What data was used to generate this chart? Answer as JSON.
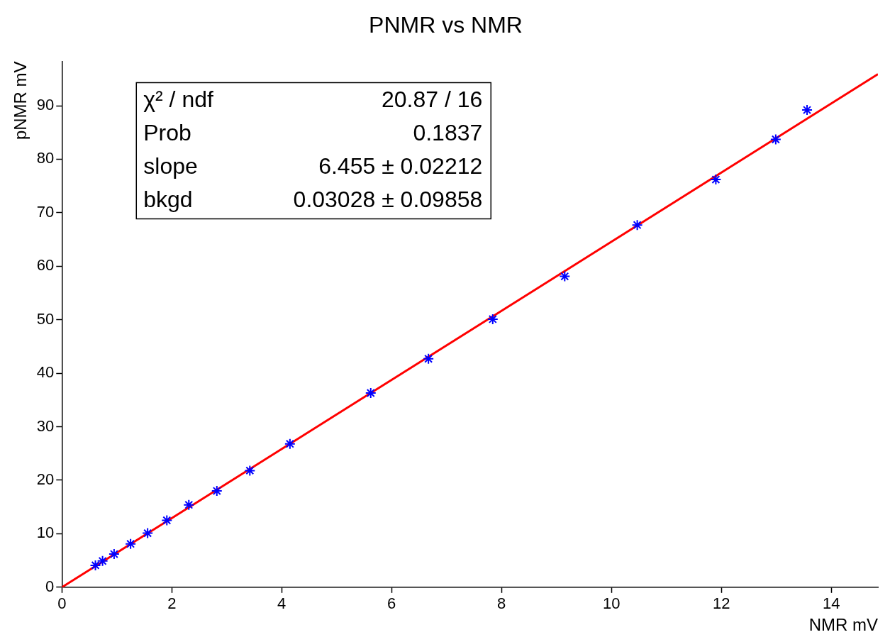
{
  "chart_data": {
    "type": "scatter",
    "title": "PNMR vs NMR",
    "xlabel": "NMR mV",
    "ylabel": "pNMR mV",
    "xlim": [
      0,
      14.85
    ],
    "ylim": [
      0,
      98.3
    ],
    "xticks": [
      0,
      2,
      4,
      6,
      8,
      10,
      12,
      14
    ],
    "yticks": [
      0,
      10,
      20,
      30,
      40,
      50,
      60,
      70,
      80,
      90
    ],
    "grid": false,
    "legend": false,
    "annotations": [
      "χ² / ndf",
      "20.87 / 16",
      "Prob",
      "0.1837",
      "slope",
      "6.455 ± 0.02212",
      "bkgd",
      "0.03028 ± 0.09858"
    ],
    "series": [
      {
        "marker": "cross",
        "color": "#0000ff",
        "x": [
          0.61,
          0.74,
          0.95,
          1.25,
          1.56,
          1.91,
          2.31,
          2.82,
          3.42,
          4.15,
          5.62,
          6.67,
          7.84,
          9.15,
          10.47,
          11.9,
          12.99,
          13.56
        ],
        "values": [
          4.1,
          4.9,
          6.2,
          8.1,
          10.1,
          12.5,
          15.4,
          18.0,
          21.8,
          26.8,
          36.3,
          42.7,
          50.1,
          58.1,
          67.7,
          76.2,
          83.7,
          89.2
        ]
      },
      {
        "type": "line",
        "marker": "none",
        "color": "#ff0000",
        "x": [
          0,
          14.85
        ],
        "values": [
          0.0,
          95.9
        ]
      }
    ]
  }
}
